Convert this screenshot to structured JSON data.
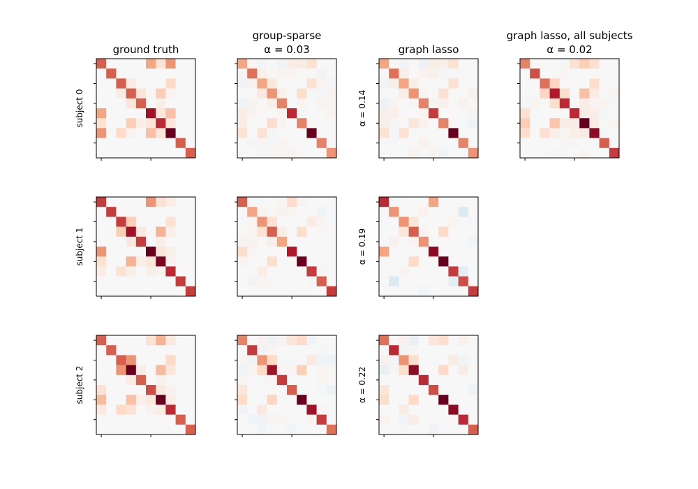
{
  "chart_data": [
    {
      "type": "heatmap",
      "title": [
        "ground truth"
      ],
      "ylabel": "subject 0",
      "colormap": "RdBu_r",
      "vlim": [
        -1,
        1
      ],
      "values": [
        [
          0.6,
          0,
          0,
          0,
          0,
          0.4,
          0.15,
          0.45,
          0,
          0
        ],
        [
          0,
          0.6,
          0,
          0,
          0,
          0,
          0,
          0,
          0,
          0
        ],
        [
          0,
          0,
          0.6,
          0.08,
          0,
          0,
          0,
          0.2,
          0,
          0
        ],
        [
          0,
          0,
          0.08,
          0.6,
          0.12,
          0,
          0.25,
          0.03,
          0,
          0
        ],
        [
          0,
          0,
          0,
          0.12,
          0.6,
          0,
          0.06,
          0,
          0,
          0
        ],
        [
          0.4,
          0,
          0,
          0,
          0,
          0.85,
          0.12,
          0.3,
          0,
          0
        ],
        [
          0.15,
          0,
          0,
          0.25,
          0.06,
          0.12,
          0.75,
          0.12,
          0,
          0
        ],
        [
          0.45,
          0,
          0.2,
          0.03,
          0,
          0.3,
          0.12,
          1.0,
          0,
          0
        ],
        [
          0,
          0,
          0,
          0,
          0,
          0,
          0,
          0,
          0.6,
          0
        ],
        [
          0,
          0,
          0,
          0,
          0,
          0,
          0,
          0,
          0,
          0.6
        ]
      ]
    },
    {
      "type": "heatmap",
      "title": [
        "group-sparse",
        "α = 0.03"
      ],
      "ylabel": "",
      "colormap": "RdBu_r",
      "vlim": [
        -1,
        1
      ],
      "values": [
        [
          0.4,
          0.02,
          -0.03,
          0.01,
          -0.04,
          0.08,
          0.08,
          0.15,
          0,
          0
        ],
        [
          0.02,
          0.55,
          0.05,
          0.01,
          0.03,
          0.03,
          0,
          0,
          -0.03,
          0
        ],
        [
          -0.04,
          0.03,
          0.4,
          0.1,
          0,
          0,
          0,
          0.15,
          0.03,
          -0.02
        ],
        [
          -0.01,
          0,
          0.1,
          0.45,
          0.05,
          0,
          0.18,
          -0.01,
          -0.01,
          0.03
        ],
        [
          -0.04,
          0.03,
          0,
          0.05,
          0.5,
          0,
          0.03,
          0,
          0.03,
          0.02
        ],
        [
          0.08,
          0.03,
          0,
          0,
          0.02,
          0.75,
          0,
          0,
          0,
          0.03
        ],
        [
          0.08,
          0,
          0,
          0.18,
          0.03,
          0,
          0.5,
          0,
          0,
          0
        ],
        [
          0.15,
          0,
          0.15,
          -0.02,
          0,
          0,
          0,
          1.0,
          0,
          0
        ],
        [
          0,
          -0.02,
          0.02,
          -0.02,
          0.03,
          0,
          0,
          0,
          0.5,
          0
        ],
        [
          0,
          0,
          -0.01,
          0.03,
          0.02,
          0.03,
          0,
          0,
          0,
          0.45
        ]
      ]
    },
    {
      "type": "heatmap",
      "title": [
        "graph lasso"
      ],
      "ylabel": "α = 0.14",
      "colormap": "RdBu_r",
      "vlim": [
        -1,
        1
      ],
      "values": [
        [
          0.4,
          0,
          -0.03,
          0,
          -0.06,
          0.06,
          0.06,
          0.15,
          0,
          0
        ],
        [
          0,
          0.55,
          0.06,
          0,
          0.03,
          0.05,
          -0.02,
          -0.01,
          -0.01,
          0
        ],
        [
          -0.03,
          0.06,
          0.4,
          0.06,
          0,
          0,
          0,
          0.15,
          0,
          0
        ],
        [
          0,
          0,
          0.06,
          0.45,
          0.02,
          0,
          0.15,
          0,
          0,
          0.04
        ],
        [
          -0.06,
          0.03,
          0,
          0.02,
          0.5,
          0.03,
          0.05,
          0,
          0.04,
          0
        ],
        [
          0.06,
          0.06,
          0,
          0,
          0.02,
          0.7,
          0,
          0,
          0,
          0.02
        ],
        [
          0.06,
          -0.02,
          0,
          0.12,
          0.04,
          0,
          0.5,
          0,
          -0.01,
          -0.04
        ],
        [
          0.15,
          -0.02,
          0.15,
          0,
          0,
          0,
          0,
          1.0,
          0,
          0
        ],
        [
          0,
          -0.01,
          0,
          0,
          0.04,
          0,
          -0.01,
          0,
          0.5,
          0
        ],
        [
          0,
          0,
          0,
          0.04,
          0,
          0.02,
          -0.03,
          0,
          0,
          0.45
        ]
      ]
    },
    {
      "type": "heatmap",
      "title": [
        "graph lasso, all subjects",
        "α = 0.02"
      ],
      "ylabel": "",
      "colormap": "RdBu_r",
      "vlim": [
        -1,
        1
      ],
      "values": [
        [
          0.5,
          0,
          0,
          0,
          -0.01,
          0.15,
          0.25,
          0.17,
          0,
          0
        ],
        [
          0,
          0.65,
          0,
          0,
          0.02,
          -0.01,
          0,
          0,
          0,
          0
        ],
        [
          0,
          0,
          0.55,
          0.22,
          0,
          0,
          0,
          0.18,
          0,
          0
        ],
        [
          0,
          0,
          0.22,
          0.8,
          0.18,
          0,
          0.3,
          0.08,
          0,
          0.02
        ],
        [
          -0.01,
          0.02,
          0,
          0.18,
          0.75,
          0,
          0.08,
          0.03,
          0.03,
          -0.01
        ],
        [
          0.15,
          -0.01,
          0,
          0,
          0,
          0.75,
          0.08,
          0.06,
          -0.02,
          0
        ],
        [
          0.25,
          0,
          0,
          0.28,
          0.08,
          0.08,
          1.0,
          0.08,
          0,
          0.02
        ],
        [
          0.17,
          0,
          0.17,
          0.06,
          0.02,
          0.06,
          0.08,
          0.9,
          -0.01,
          0
        ],
        [
          0,
          0,
          0,
          0,
          0.02,
          -0.02,
          0,
          -0.01,
          0.6,
          0
        ],
        [
          0,
          0,
          0,
          0.02,
          -0.01,
          0,
          0.02,
          0,
          0,
          0.7
        ]
      ]
    },
    {
      "type": "heatmap",
      "title": [],
      "ylabel": "subject 1",
      "colormap": "RdBu_r",
      "vlim": [
        -1,
        1
      ],
      "values": [
        [
          0.7,
          0,
          0,
          0,
          0,
          0.45,
          0.15,
          0.07,
          0,
          0
        ],
        [
          0,
          0.7,
          0,
          0,
          0,
          0,
          0,
          0,
          0,
          0
        ],
        [
          0,
          0,
          0.7,
          0.25,
          0,
          0,
          0,
          0.15,
          0,
          0
        ],
        [
          0,
          0,
          0.25,
          0.85,
          0.1,
          0,
          0.35,
          0.06,
          0,
          0
        ],
        [
          0,
          0,
          0,
          0.1,
          0.7,
          0,
          0.06,
          0,
          0,
          0
        ],
        [
          0.45,
          0,
          0,
          0,
          0,
          1.0,
          0.12,
          0.06,
          0,
          0
        ],
        [
          0.15,
          0,
          0,
          0.35,
          0.06,
          0.12,
          0.95,
          0.03,
          0,
          0
        ],
        [
          0.07,
          0,
          0.15,
          0.06,
          0,
          0.06,
          0.03,
          0.75,
          0,
          0
        ],
        [
          0,
          0,
          0,
          0,
          0,
          0,
          0,
          0,
          0.7,
          0
        ],
        [
          0,
          0,
          0,
          0,
          0,
          0,
          0,
          0,
          0,
          0.7
        ]
      ]
    },
    {
      "type": "heatmap",
      "title": [],
      "ylabel": "",
      "colormap": "RdBu_r",
      "vlim": [
        -1,
        1
      ],
      "values": [
        [
          0.6,
          -0.01,
          -0.01,
          0,
          0.02,
          0.18,
          0.03,
          0,
          0,
          0
        ],
        [
          -0.01,
          0.4,
          0.03,
          0.01,
          0.03,
          0.02,
          0,
          0,
          -0.05,
          0
        ],
        [
          -0.01,
          0.02,
          0.45,
          0.15,
          0,
          0,
          0,
          0.08,
          0.03,
          -0.01
        ],
        [
          0.01,
          0.02,
          0.15,
          0.6,
          0.06,
          0,
          0.18,
          0,
          0.01,
          0.01
        ],
        [
          0.03,
          0.03,
          0,
          0.06,
          0.4,
          0,
          0,
          0,
          0,
          -0.01
        ],
        [
          0.18,
          0.02,
          0,
          0,
          0,
          0.8,
          0,
          0,
          0,
          0.01
        ],
        [
          0.03,
          0,
          0,
          0.18,
          0,
          0,
          1.0,
          0,
          0,
          0
        ],
        [
          0,
          0,
          0.07,
          0,
          0,
          0,
          0,
          0.7,
          -0.02,
          0
        ],
        [
          0,
          -0.03,
          0.02,
          0.01,
          0,
          0,
          0,
          -0.02,
          0.6,
          0
        ],
        [
          0,
          0,
          -0.01,
          0.01,
          -0.01,
          0.01,
          0,
          0,
          0,
          0.7
        ]
      ]
    },
    {
      "type": "heatmap",
      "title": [],
      "ylabel": "α = 0.19",
      "colormap": "RdBu_r",
      "vlim": [
        -1,
        1
      ],
      "values": [
        [
          0.75,
          -0.01,
          -0.01,
          0,
          0,
          0.4,
          0,
          0,
          0,
          0
        ],
        [
          -0.01,
          0.45,
          0,
          0,
          0.04,
          0,
          0,
          0,
          -0.15,
          0
        ],
        [
          -0.01,
          0,
          0.45,
          0.12,
          0,
          0,
          0,
          0.03,
          0,
          -0.01
        ],
        [
          0,
          0,
          0.12,
          0.6,
          0.03,
          0,
          0.2,
          0,
          0,
          0
        ],
        [
          0,
          0.04,
          0,
          0.03,
          0.45,
          0,
          0,
          0,
          0,
          -0.03
        ],
        [
          0.4,
          0,
          0,
          0,
          0,
          0.9,
          0,
          0,
          0,
          0
        ],
        [
          0,
          0,
          0,
          0.2,
          0,
          0,
          1.0,
          0,
          0,
          0
        ],
        [
          0,
          0,
          0.03,
          0,
          0,
          0,
          0,
          0.7,
          -0.1,
          0
        ],
        [
          0,
          -0.15,
          0,
          0,
          0,
          0,
          0,
          -0.1,
          0.65,
          0
        ],
        [
          0,
          0,
          -0.01,
          0,
          -0.03,
          0,
          0,
          0,
          0,
          0.7
        ]
      ]
    },
    {
      "type": "heatmap",
      "title": [],
      "ylabel": "subject 2",
      "colormap": "RdBu_r",
      "vlim": [
        -1,
        1
      ],
      "values": [
        [
          0.6,
          0,
          0,
          0,
          0,
          0.15,
          0.35,
          0.1,
          0,
          0
        ],
        [
          0,
          0.6,
          0,
          0,
          0,
          0,
          0,
          0,
          0,
          0
        ],
        [
          0,
          0,
          0.6,
          0.45,
          0,
          0,
          0,
          0.2,
          0,
          0
        ],
        [
          0,
          0,
          0.45,
          1.0,
          0.08,
          0,
          0.32,
          0.12,
          0,
          0
        ],
        [
          0,
          0,
          0,
          0.08,
          0.6,
          0,
          0.04,
          0,
          0,
          0
        ],
        [
          0.15,
          0,
          0,
          0,
          0,
          0.65,
          0.1,
          0.04,
          0,
          0
        ],
        [
          0.32,
          0,
          0,
          0.3,
          0.05,
          0.1,
          1.0,
          0.07,
          0,
          0
        ],
        [
          0.1,
          0,
          0.2,
          0.15,
          0,
          0.04,
          0.07,
          0.75,
          0,
          0
        ],
        [
          0,
          0,
          0,
          0,
          0,
          0,
          0,
          0,
          0.6,
          0
        ],
        [
          0,
          0,
          0,
          0,
          0,
          0,
          0,
          0,
          0,
          0.6
        ]
      ]
    },
    {
      "type": "heatmap",
      "title": [],
      "ylabel": "",
      "colormap": "RdBu_r",
      "vlim": [
        -1,
        1
      ],
      "values": [
        [
          0.5,
          0,
          0.03,
          -0.05,
          0.03,
          0.12,
          0.2,
          -0.03,
          0,
          0
        ],
        [
          0,
          0.7,
          -0.03,
          0.02,
          0,
          0,
          0,
          0,
          -0.02,
          0
        ],
        [
          0.02,
          -0.03,
          0.45,
          0.2,
          -0.01,
          -0.01,
          -0.01,
          0.1,
          -0.05,
          -0.05
        ],
        [
          -0.05,
          0.02,
          0.2,
          0.85,
          0.02,
          0.02,
          0.25,
          0,
          0.03,
          0.01
        ],
        [
          0.02,
          0,
          -0.01,
          0.02,
          0.7,
          0,
          -0.01,
          0,
          0.02,
          0
        ],
        [
          0.12,
          0,
          -0.01,
          0.01,
          0,
          0.6,
          0,
          0,
          -0.02,
          -0.05
        ],
        [
          0.2,
          0,
          -0.01,
          0.22,
          -0.01,
          0,
          1.0,
          0,
          0,
          0
        ],
        [
          -0.03,
          0,
          0.1,
          0,
          0,
          0,
          0,
          0.85,
          0.02,
          0
        ],
        [
          0,
          -0.03,
          -0.04,
          0.03,
          0.02,
          -0.01,
          0,
          0.02,
          0.7,
          0
        ],
        [
          0,
          0,
          -0.03,
          0,
          0,
          -0.03,
          0,
          0,
          0,
          0.55
        ]
      ]
    },
    {
      "type": "heatmap",
      "title": [],
      "ylabel": "α = 0.22",
      "colormap": "RdBu_r",
      "vlim": [
        -1,
        1
      ],
      "values": [
        [
          0.55,
          0,
          0.04,
          -0.08,
          0,
          0.12,
          0.18,
          0,
          0.05,
          0
        ],
        [
          0,
          0.75,
          -0.03,
          0.02,
          0,
          0,
          0,
          0,
          0,
          0
        ],
        [
          0.04,
          -0.03,
          0.45,
          0.18,
          0,
          -0.01,
          0,
          0.08,
          -0.03,
          -0.01
        ],
        [
          -0.08,
          0.02,
          0.18,
          0.9,
          0,
          0,
          0.2,
          0,
          0.08,
          0
        ],
        [
          0,
          0,
          0,
          0,
          0.75,
          0,
          0,
          0,
          0,
          0
        ],
        [
          0.12,
          0,
          -0.01,
          0,
          0,
          0.65,
          0,
          0,
          0,
          -0.04
        ],
        [
          0.18,
          0,
          0,
          0.2,
          0,
          0,
          1.0,
          0,
          0,
          0
        ],
        [
          0,
          0,
          0.08,
          0,
          0,
          0,
          0,
          0.9,
          0,
          0
        ],
        [
          0.04,
          0,
          -0.03,
          0.07,
          0,
          0,
          0,
          0,
          0.75,
          0
        ],
        [
          0,
          0,
          -0.01,
          0,
          0,
          -0.04,
          0,
          0,
          0,
          0.6
        ]
      ]
    }
  ]
}
